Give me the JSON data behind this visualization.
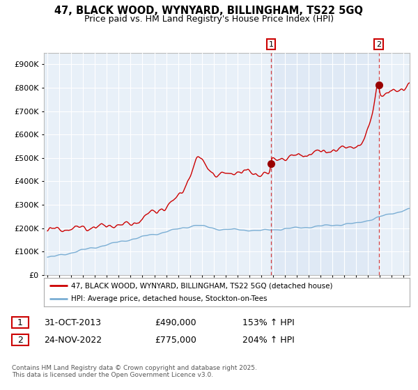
{
  "title": "47, BLACK WOOD, WYNYARD, BILLINGHAM, TS22 5GQ",
  "subtitle": "Price paid vs. HM Land Registry's House Price Index (HPI)",
  "legend_line1": "47, BLACK WOOD, WYNYARD, BILLINGHAM, TS22 5GQ (detached house)",
  "legend_line2": "HPI: Average price, detached house, Stockton-on-Tees",
  "footer": "Contains HM Land Registry data © Crown copyright and database right 2025.\nThis data is licensed under the Open Government Licence v3.0.",
  "red_color": "#cc0000",
  "blue_color": "#7aaed4",
  "bg_plot": "#e8f0f8",
  "bg_figure": "#ffffff",
  "grid_color": "#ffffff",
  "sale1_date": "31-OCT-2013",
  "sale1_price": 490000,
  "sale1_hpi": "153% ↑ HPI",
  "sale1_x": 2013.83,
  "sale2_date": "24-NOV-2022",
  "sale2_price": 775000,
  "sale2_hpi": "204% ↑ HPI",
  "sale2_x": 2022.9,
  "ylim": [
    0,
    950000
  ],
  "xlim_start": 1994.7,
  "xlim_end": 2025.5
}
